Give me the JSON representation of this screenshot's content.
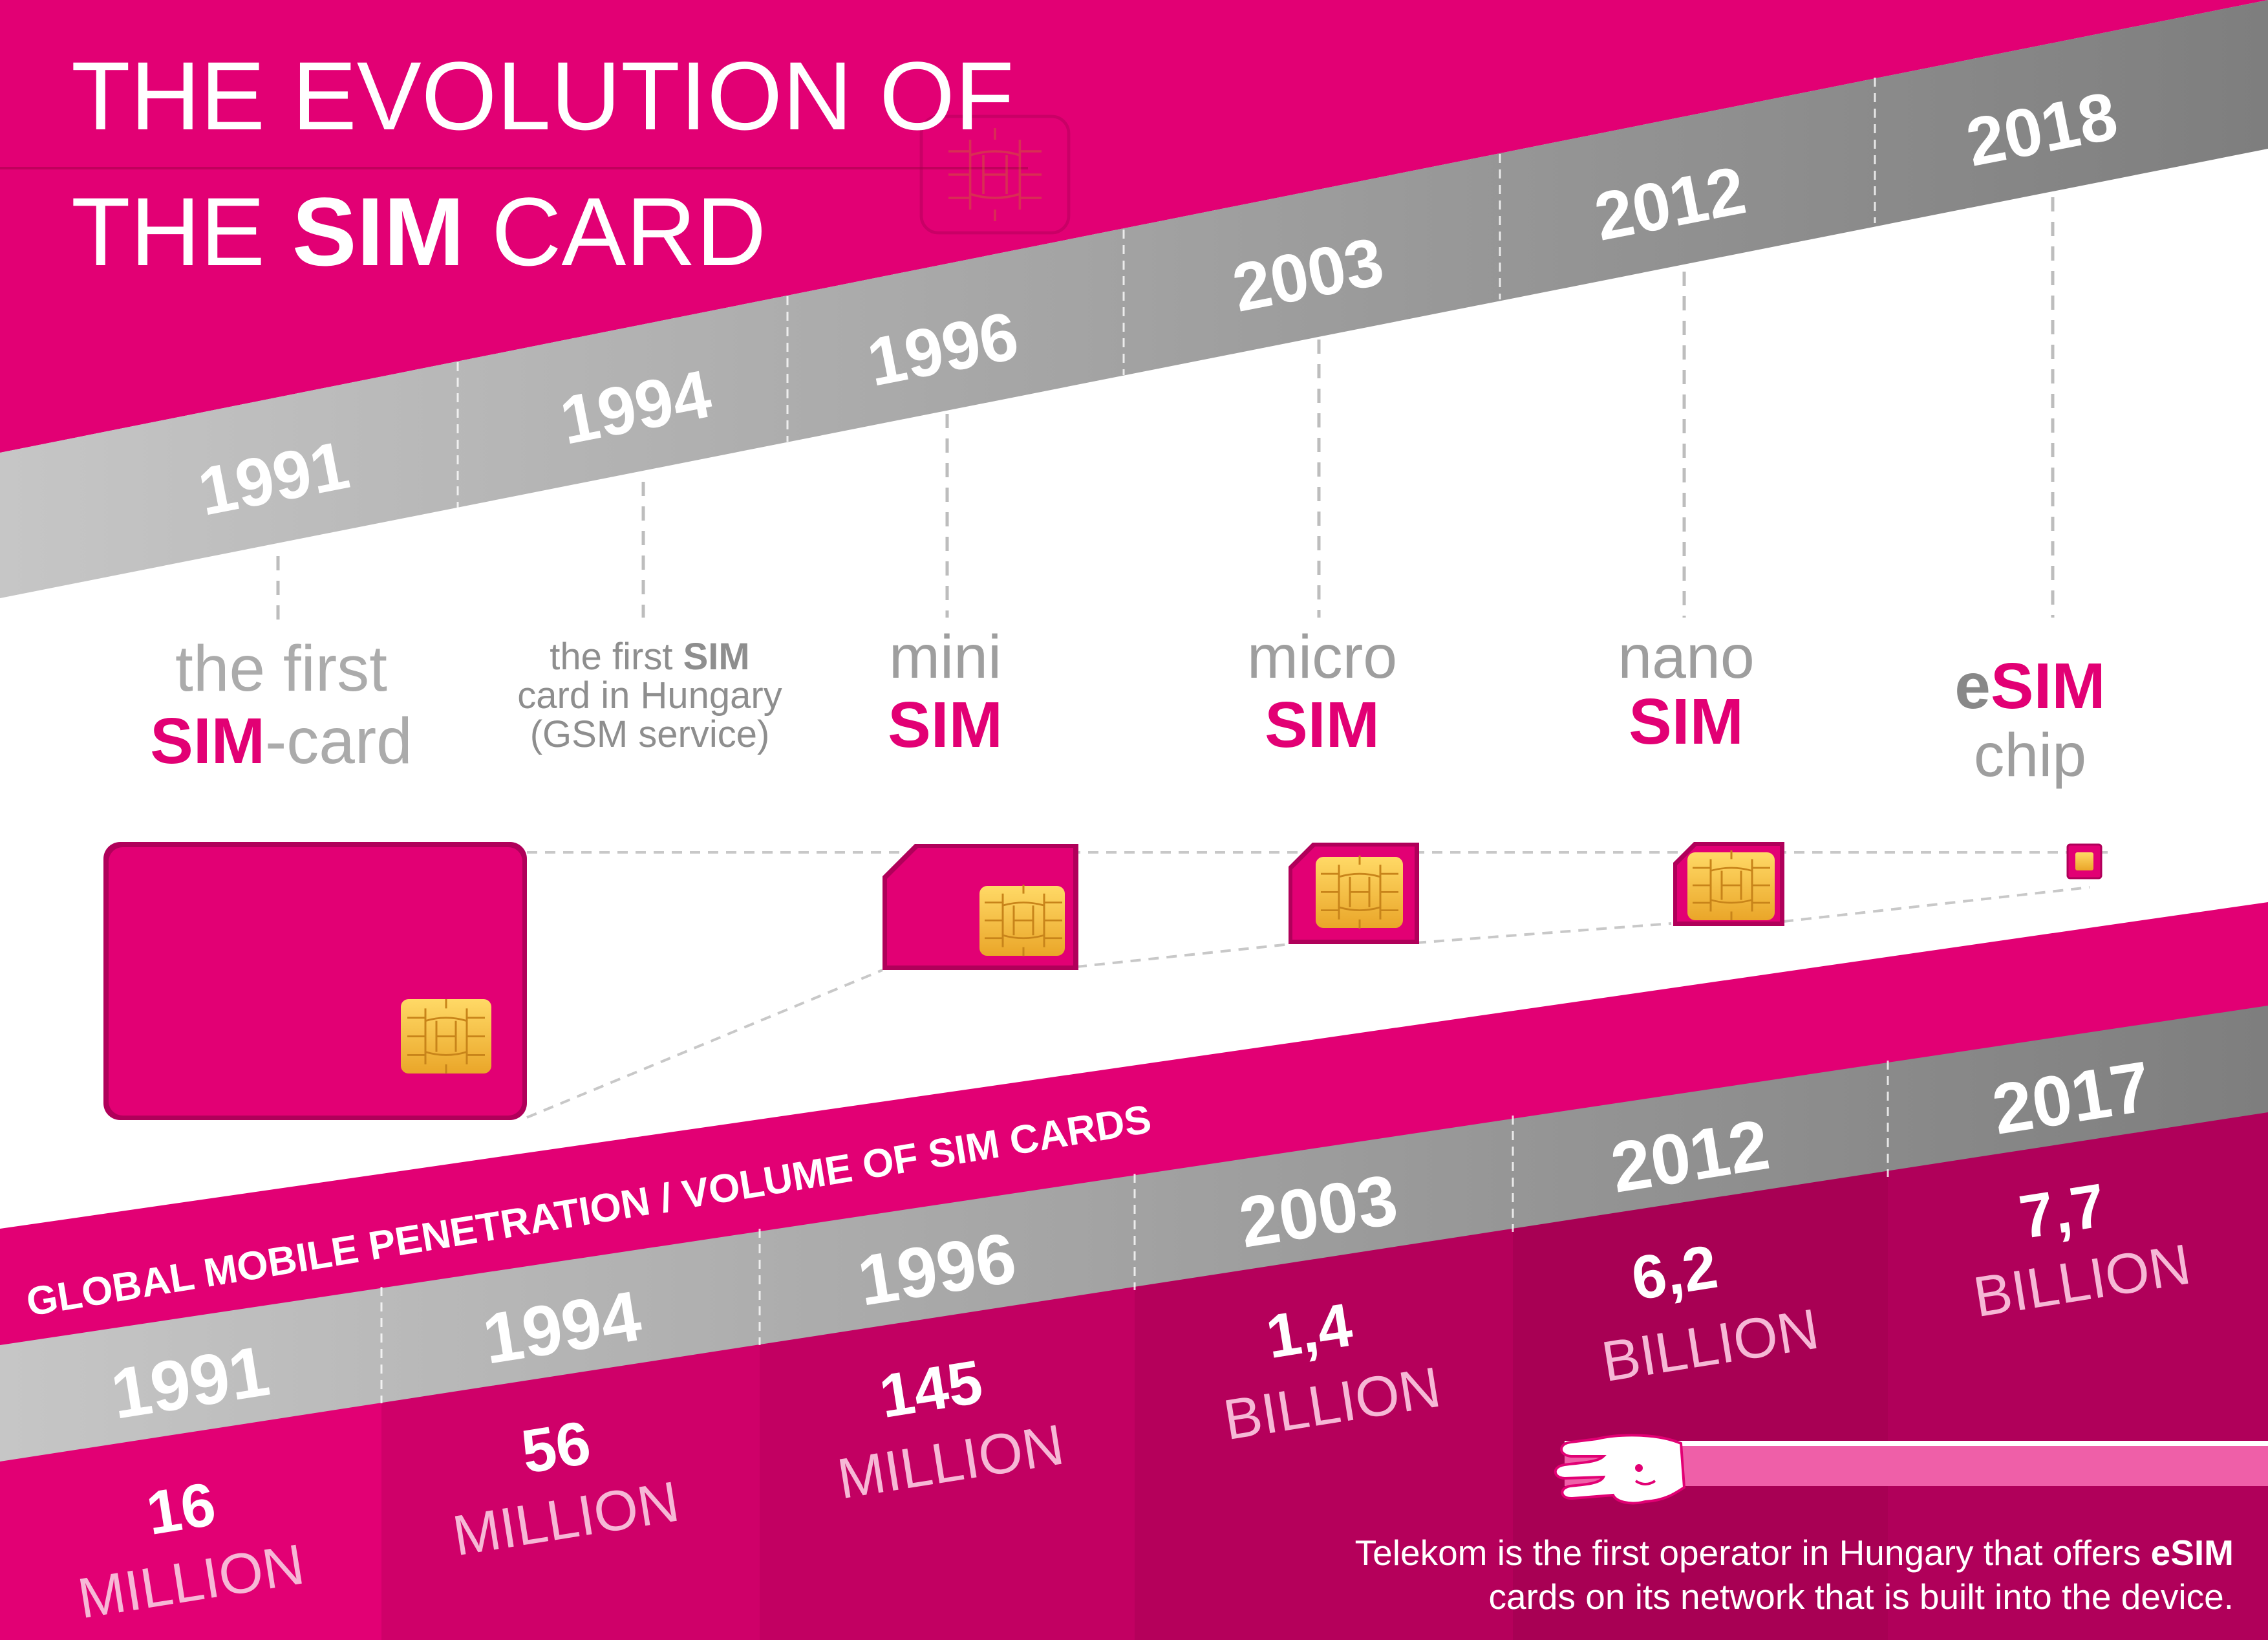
{
  "title": {
    "line1": "THE EVOLUTION OF",
    "line2_pre": "THE ",
    "line2_bold": "SIM",
    "line2_post": " CARD"
  },
  "timeline": {
    "years": [
      "1991",
      "1994",
      "1996",
      "2003",
      "2012",
      "2018"
    ]
  },
  "cards": {
    "first": {
      "line1": "the first",
      "bold": "SIM",
      "rest": "-card"
    },
    "hungary": {
      "line1_pre": "the first ",
      "line1_bold": "SIM",
      "line2": "card in Hungary",
      "line3": "(GSM service)"
    },
    "mini": {
      "top": "mini",
      "bold": "SIM"
    },
    "micro": {
      "top": "micro",
      "bold": "SIM"
    },
    "nano": {
      "top": "nano",
      "bold": "SIM"
    },
    "esim": {
      "e": "e",
      "bold": "SIM",
      "bottom": "chip"
    }
  },
  "penetration": {
    "heading": "GLOBAL MOBILE PENETRATION / VOLUME OF SIM CARDS",
    "items": [
      {
        "year": "1991",
        "value": "16",
        "unit": "MILLION"
      },
      {
        "year": "1994",
        "value": "56",
        "unit": "MILLION"
      },
      {
        "year": "1996",
        "value": "145",
        "unit": "MILLION"
      },
      {
        "year": "2003",
        "value": "1,4",
        "unit": "BILLION"
      },
      {
        "year": "2012",
        "value": "6,2",
        "unit": "BILLION"
      },
      {
        "year": "2017",
        "value": "7,7",
        "unit": "BILLION"
      }
    ]
  },
  "footer": {
    "line1_pre": "Telekom is the first operator in Hungary that offers ",
    "line1_bold": "eSIM",
    "line2": "cards on its network that is built into the device."
  },
  "colors": {
    "magenta": "#E20074",
    "gold": "#F5C242",
    "gray_light": "#BDBDBD",
    "gray_dark": "#8A8A8A"
  }
}
